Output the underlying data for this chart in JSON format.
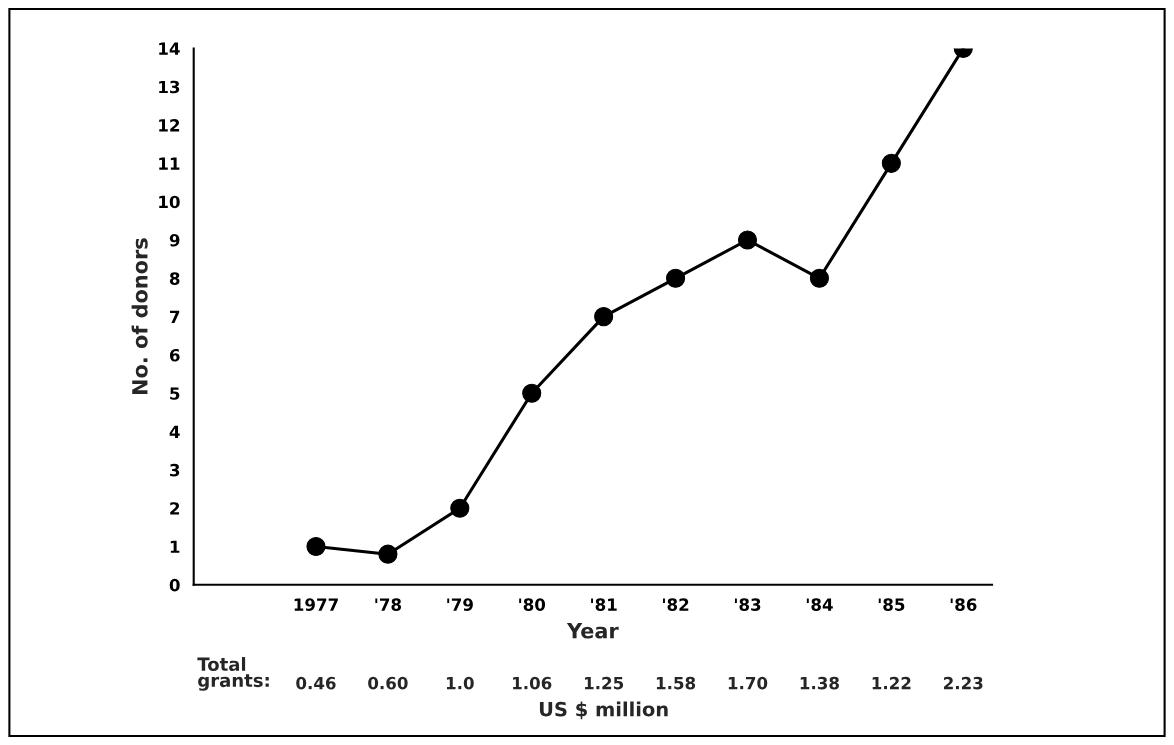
{
  "chart_data": {
    "type": "line",
    "categories": [
      "1977",
      "'78",
      "'79",
      "'80",
      "'81",
      "'82",
      "'83",
      "'84",
      "'85",
      "'86"
    ],
    "values": [
      1,
      0.8,
      2,
      5,
      7,
      8,
      9,
      8,
      11,
      14
    ],
    "color": "#000000",
    "xlabel": "Year",
    "ylabel": "No. of donors",
    "ylim": [
      0,
      14
    ],
    "yticks": [
      0,
      1,
      2,
      3,
      4,
      5,
      6,
      7,
      8,
      9,
      10,
      11,
      12,
      13,
      14
    ],
    "marker": "circle",
    "line_style": "solid",
    "grid": false,
    "legend": false,
    "annotations": [
      "Total\ngrants:",
      "0.46",
      "0.60",
      "1.0",
      "1.06",
      "1.25",
      "1.58",
      "1.70",
      "1.38",
      "1.22",
      "2.23",
      "US $ million"
    ]
  }
}
